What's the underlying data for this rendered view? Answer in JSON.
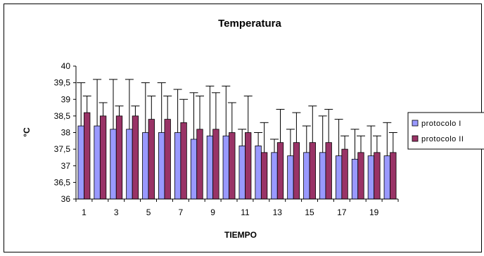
{
  "chart_data": {
    "type": "bar",
    "title": "Temperatura",
    "xlabel": "TIEMPO",
    "ylabel": "°C",
    "ylim": [
      36,
      40
    ],
    "yticks": [
      "36",
      "36,5",
      "37",
      "37,5",
      "38",
      "38,5",
      "39",
      "39,5",
      "40"
    ],
    "ytick_values": [
      36,
      36.5,
      37,
      37.5,
      38,
      38.5,
      39,
      39.5,
      40
    ],
    "categories": [
      "1",
      "2",
      "3",
      "4",
      "5",
      "6",
      "7",
      "8",
      "9",
      "10",
      "11",
      "12",
      "13",
      "14",
      "15",
      "16",
      "17",
      "18",
      "19",
      "20"
    ],
    "xtick_labels": [
      "1",
      "",
      "3",
      "",
      "5",
      "",
      "7",
      "",
      "9",
      "",
      "11",
      "",
      "13",
      "",
      "15",
      "",
      "17",
      "",
      "19",
      ""
    ],
    "grid": false,
    "legend": "right",
    "error_bars": "positive",
    "series": [
      {
        "name": "protocolo I",
        "color": "#9999ff",
        "values": [
          38.2,
          38.2,
          38.1,
          38.1,
          38.0,
          38.0,
          38.0,
          37.8,
          37.9,
          37.9,
          37.6,
          37.6,
          37.4,
          37.3,
          37.4,
          37.4,
          37.3,
          37.2,
          37.3,
          37.3
        ],
        "error_tops": [
          39.5,
          39.6,
          39.6,
          39.6,
          39.5,
          39.5,
          39.3,
          39.2,
          39.4,
          39.4,
          38.1,
          38.0,
          37.8,
          38.1,
          38.2,
          38.5,
          38.4,
          38.1,
          38.2,
          38.3
        ]
      },
      {
        "name": "protocolo II",
        "color": "#993366",
        "values": [
          38.6,
          38.5,
          38.5,
          38.5,
          38.4,
          38.4,
          38.3,
          38.1,
          38.1,
          38.0,
          38.0,
          37.4,
          37.7,
          37.7,
          37.7,
          37.7,
          37.5,
          37.4,
          37.4,
          37.4
        ],
        "error_tops": [
          39.1,
          38.9,
          38.8,
          38.8,
          39.1,
          39.1,
          39.0,
          39.1,
          39.2,
          38.9,
          39.1,
          38.3,
          38.7,
          38.6,
          38.8,
          38.7,
          37.9,
          37.9,
          37.9,
          38.0
        ]
      }
    ]
  }
}
